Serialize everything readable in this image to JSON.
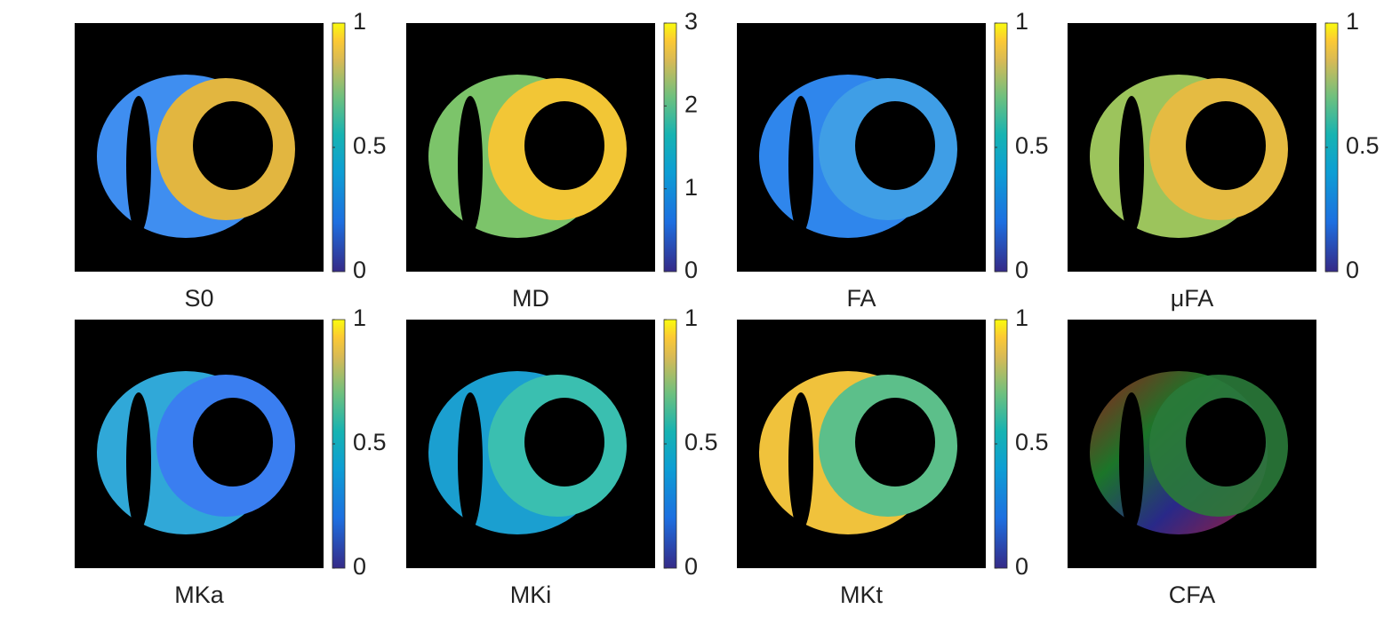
{
  "chart_data": [
    {
      "type": "image",
      "title": "S0",
      "clim": [
        0,
        1
      ],
      "cticks": [
        0,
        0.5,
        1
      ]
    },
    {
      "type": "image",
      "title": "MD",
      "clim": [
        0,
        3
      ],
      "cticks": [
        0,
        1,
        2,
        3
      ]
    },
    {
      "type": "image",
      "title": "FA",
      "clim": [
        0,
        1
      ],
      "cticks": [
        0,
        0.5,
        1
      ]
    },
    {
      "type": "image",
      "title": "μFA",
      "clim": [
        0,
        1
      ],
      "cticks": [
        0,
        0.5,
        1
      ]
    },
    {
      "type": "image",
      "title": "MKa",
      "clim": [
        0,
        1
      ],
      "cticks": [
        0,
        0.5,
        1
      ]
    },
    {
      "type": "image",
      "title": "MKi",
      "clim": [
        0,
        1
      ],
      "cticks": [
        0,
        0.5,
        1
      ]
    },
    {
      "type": "image",
      "title": "MKt",
      "clim": [
        0,
        1
      ],
      "cticks": [
        0,
        0.5,
        1
      ]
    },
    {
      "type": "rgb-image",
      "title": "CFA"
    }
  ]
}
